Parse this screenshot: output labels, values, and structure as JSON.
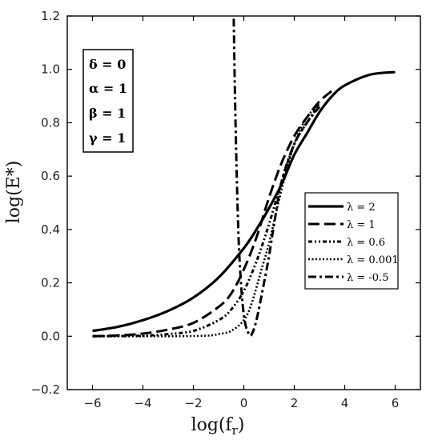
{
  "chart_data": {
    "type": "line",
    "xlabel": "log(f",
    "xlabel_sub": "r",
    "xlabel_close": ")",
    "ylabel": "log(E*)",
    "xlim": [
      -7,
      7
    ],
    "ylim": [
      -0.2,
      1.2
    ],
    "x_ticks": [
      -6,
      -4,
      -2,
      0,
      2,
      4,
      6
    ],
    "x_tick_labels": [
      "−6",
      "−4",
      "−2",
      "0",
      "2",
      "4",
      "6"
    ],
    "y_ticks": [
      -0.2,
      0.0,
      0.2,
      0.4,
      0.6,
      0.8,
      1.0,
      1.2
    ],
    "y_tick_labels": [
      "−0.2",
      "0.0",
      "0.2",
      "0.4",
      "0.6",
      "0.8",
      "1.0",
      "1.2"
    ],
    "grid": false,
    "legend_position": "right-middle",
    "parameters": [
      "δ = 0",
      "α = 1",
      "β = 1",
      "γ = 1"
    ],
    "series": [
      {
        "name": "λ = 2",
        "dash": "solid",
        "x": [
          -6,
          -5,
          -4,
          -3,
          -2,
          -1,
          0,
          0.5,
          1,
          1.5,
          2,
          2.5,
          3,
          3.5,
          4,
          5,
          6
        ],
        "y": [
          0.02,
          0.035,
          0.06,
          0.095,
          0.145,
          0.22,
          0.33,
          0.4,
          0.48,
          0.57,
          0.68,
          0.76,
          0.84,
          0.9,
          0.94,
          0.98,
          0.99
        ]
      },
      {
        "name": "λ = 1",
        "dash": "long-dash",
        "x": [
          -6,
          -5,
          -4,
          -3,
          -2,
          -1,
          -0.5,
          0,
          0.5,
          1,
          1.5,
          2,
          2.5,
          3,
          3.5
        ],
        "y": [
          0.0,
          0.003,
          0.01,
          0.025,
          0.05,
          0.11,
          0.16,
          0.25,
          0.37,
          0.52,
          0.65,
          0.75,
          0.82,
          0.88,
          0.92
        ]
      },
      {
        "name": "λ = 0.6",
        "dash": "dash-dot-dot",
        "x": [
          -6,
          -4,
          -3,
          -2,
          -1,
          -0.5,
          0,
          0.5,
          1,
          1.5,
          2,
          2.5,
          3
        ],
        "y": [
          0.0,
          0.002,
          0.008,
          0.02,
          0.06,
          0.1,
          0.17,
          0.28,
          0.42,
          0.58,
          0.72,
          0.8,
          0.87
        ]
      },
      {
        "name": "λ = 0.001",
        "dash": "dotted",
        "x": [
          -6,
          -3,
          -1.5,
          -1,
          -0.5,
          0,
          0.3,
          0.7,
          1,
          1.5,
          2,
          2.5,
          3
        ],
        "y": [
          0.0,
          0.0,
          0.002,
          0.008,
          0.02,
          0.06,
          0.12,
          0.25,
          0.35,
          0.55,
          0.72,
          0.82,
          0.87
        ]
      },
      {
        "name": "λ = -0.5",
        "dash": "dash-dot",
        "x": [
          -0.4,
          -0.35,
          -0.28,
          -0.2,
          -0.1,
          0.0,
          0.1,
          0.2,
          0.3,
          0.5,
          0.8,
          1.0,
          1.2,
          1.5,
          2.0,
          2.5,
          3.0
        ],
        "y": [
          1.19,
          0.9,
          0.6,
          0.35,
          0.18,
          0.08,
          0.03,
          0.01,
          0.005,
          0.06,
          0.2,
          0.3,
          0.42,
          0.58,
          0.72,
          0.8,
          0.86
        ]
      }
    ]
  }
}
